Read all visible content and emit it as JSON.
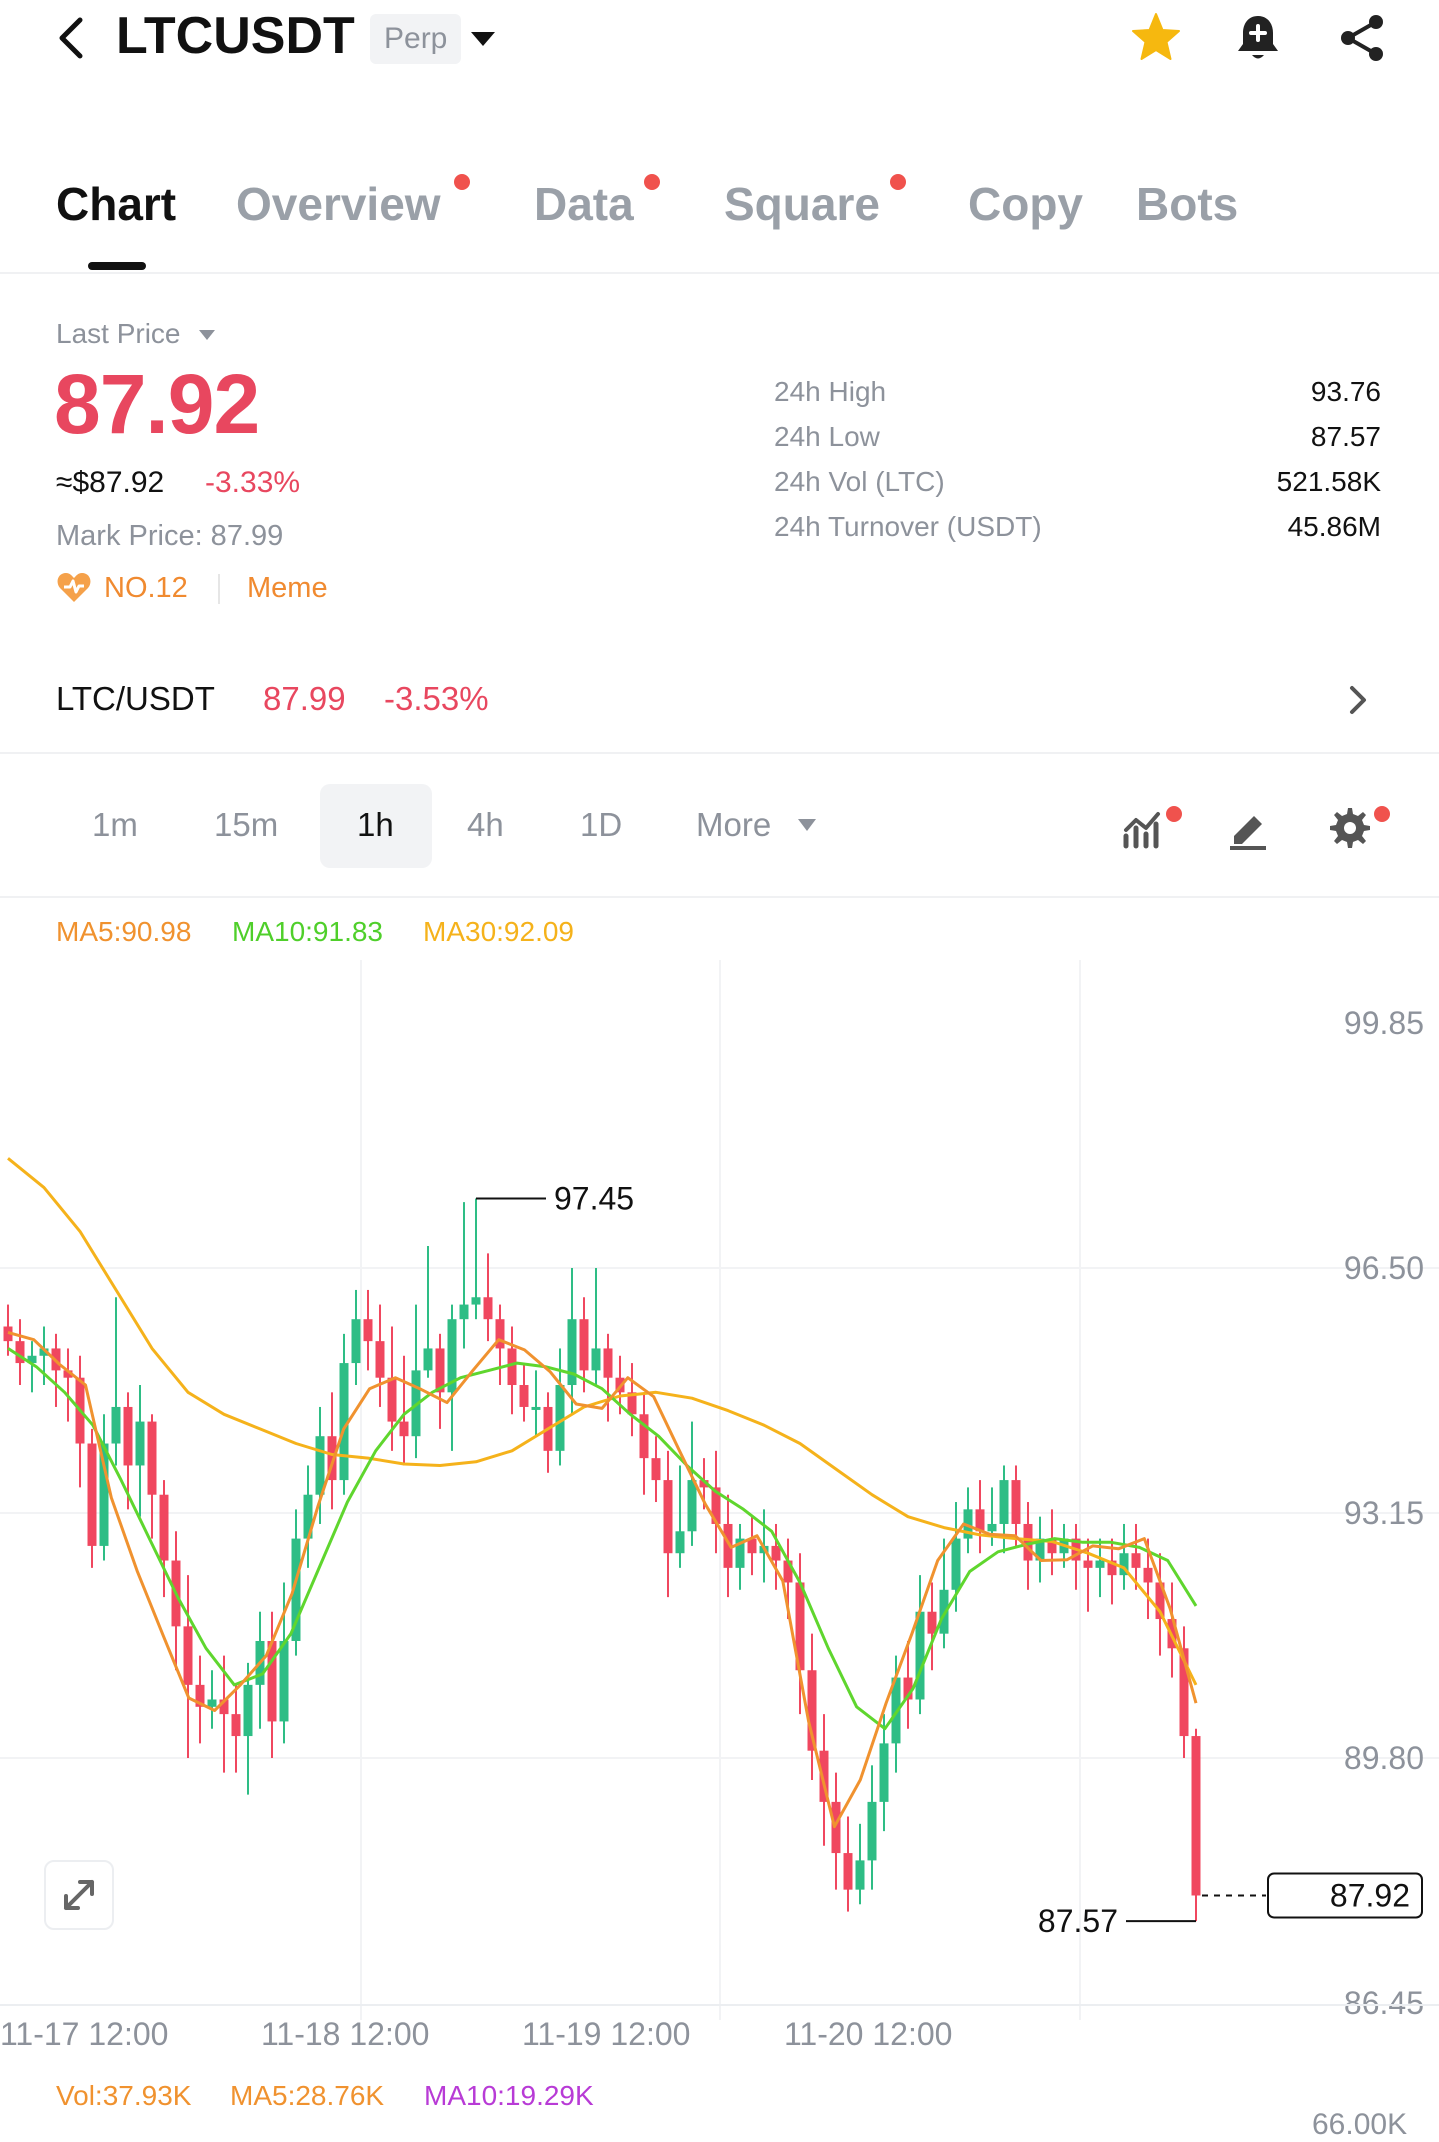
{
  "header": {
    "symbol": "LTCUSDT",
    "contract_type": "Perp",
    "icons": [
      "back-icon",
      "chevron-down-icon",
      "star-icon",
      "bell-plus-icon",
      "share-icon"
    ]
  },
  "tabs": [
    {
      "label": "Chart",
      "active": true,
      "dot": false
    },
    {
      "label": "Overview",
      "active": false,
      "dot": true
    },
    {
      "label": "Data",
      "active": false,
      "dot": true
    },
    {
      "label": "Square",
      "active": false,
      "dot": true
    },
    {
      "label": "Copy",
      "active": false,
      "dot": false
    },
    {
      "label": "Bots",
      "active": false,
      "dot": false
    }
  ],
  "price": {
    "last_price_label": "Last Price",
    "last_price": "87.92",
    "approx_usd": "≈$87.92",
    "change_pct": "-3.33%",
    "mark_price": "Mark Price:  87.99",
    "rank": "NO.12",
    "tag": "Meme"
  },
  "stats": [
    {
      "label": "24h High",
      "value": "93.76"
    },
    {
      "label": "24h Low",
      "value": "87.57"
    },
    {
      "label": "24h Vol (LTC)",
      "value": "521.58K"
    },
    {
      "label": "24h Turnover (USDT)",
      "value": "45.86M"
    }
  ],
  "spot_pair": {
    "pair": "LTC/USDT",
    "price": "87.99",
    "change": "-3.53%"
  },
  "timeframes": [
    {
      "label": "1m",
      "active": false
    },
    {
      "label": "15m",
      "active": false
    },
    {
      "label": "1h",
      "active": true
    },
    {
      "label": "4h",
      "active": false
    },
    {
      "label": "1D",
      "active": false
    },
    {
      "label": "More",
      "active": false
    }
  ],
  "ma_legend": {
    "ma5": "MA5:90.98",
    "ma10": "MA10:91.83",
    "ma30": "MA30:92.09"
  },
  "colors": {
    "up": "#2ebd85",
    "down": "#f0475f",
    "ma5": "#f0922f",
    "ma10": "#5fd62e",
    "ma30": "#f5b21b",
    "accent": "#e8475f"
  },
  "chart_data": {
    "type": "candlestick",
    "interval": "1h",
    "y_ticks": [
      "99.85",
      "96.50",
      "93.15",
      "89.80",
      "86.45"
    ],
    "ylim": [
      86.45,
      99.85
    ],
    "x_ticks": [
      "11-17 12:00",
      "11-18 12:00",
      "11-19 12:00",
      "11-20 12:00"
    ],
    "high_marker": "97.45",
    "low_marker": "87.57",
    "current_price": "87.92",
    "candles": [
      [
        95.7,
        95.5,
        96.0,
        95.3
      ],
      [
        95.5,
        95.2,
        95.8,
        94.9
      ],
      [
        95.2,
        95.3,
        95.5,
        94.8
      ],
      [
        95.3,
        95.4,
        95.7,
        94.9
      ],
      [
        95.4,
        95.1,
        95.6,
        94.6
      ],
      [
        95.1,
        95.0,
        95.4,
        94.4
      ],
      [
        95.0,
        94.1,
        95.3,
        93.5
      ],
      [
        94.1,
        92.7,
        94.3,
        92.4
      ],
      [
        92.7,
        94.1,
        94.5,
        92.5
      ],
      [
        94.1,
        94.6,
        96.1,
        93.8
      ],
      [
        94.6,
        93.8,
        94.8,
        93.2
      ],
      [
        93.8,
        94.4,
        94.9,
        93.1
      ],
      [
        94.4,
        93.4,
        94.5,
        92.8
      ],
      [
        93.4,
        92.5,
        93.6,
        92.0
      ],
      [
        92.5,
        91.6,
        92.9,
        91.0
      ],
      [
        91.6,
        90.8,
        92.3,
        89.8
      ],
      [
        90.8,
        90.5,
        91.2,
        90.0
      ],
      [
        90.5,
        90.6,
        91.0,
        90.2
      ],
      [
        90.6,
        90.4,
        91.2,
        89.6
      ],
      [
        90.4,
        90.1,
        90.8,
        89.6
      ],
      [
        90.1,
        90.8,
        91.1,
        89.3
      ],
      [
        90.8,
        91.4,
        91.8,
        90.2
      ],
      [
        91.4,
        90.3,
        91.8,
        89.8
      ],
      [
        90.3,
        91.4,
        92.2,
        90.0
      ],
      [
        91.4,
        92.8,
        93.2,
        91.2
      ],
      [
        92.8,
        93.4,
        93.8,
        92.4
      ],
      [
        93.4,
        94.2,
        94.6,
        93.0
      ],
      [
        94.2,
        93.6,
        94.8,
        93.2
      ],
      [
        93.6,
        95.2,
        95.6,
        93.4
      ],
      [
        95.2,
        95.8,
        96.2,
        94.9
      ],
      [
        95.8,
        95.5,
        96.2,
        95.1
      ],
      [
        95.5,
        95.0,
        96.0,
        94.6
      ],
      [
        95.0,
        94.4,
        95.7,
        94.0
      ],
      [
        94.4,
        94.2,
        95.3,
        93.8
      ],
      [
        94.2,
        95.1,
        96.0,
        93.9
      ],
      [
        95.1,
        95.4,
        96.8,
        95.0
      ],
      [
        95.4,
        94.8,
        95.6,
        94.3
      ],
      [
        94.8,
        95.8,
        96.0,
        94.0
      ],
      [
        95.8,
        96.0,
        97.4,
        95.4
      ],
      [
        96.0,
        96.1,
        97.45,
        95.8
      ],
      [
        96.1,
        95.8,
        96.7,
        95.5
      ],
      [
        95.8,
        95.4,
        96.0,
        94.9
      ],
      [
        95.4,
        94.9,
        95.7,
        94.5
      ],
      [
        94.9,
        94.6,
        95.2,
        94.4
      ],
      [
        94.6,
        94.6,
        95.1,
        94.2
      ],
      [
        94.6,
        94.0,
        94.8,
        93.7
      ],
      [
        94.0,
        94.9,
        95.4,
        93.8
      ],
      [
        94.9,
        95.8,
        96.5,
        94.5
      ],
      [
        95.8,
        95.1,
        96.1,
        94.8
      ],
      [
        95.1,
        95.4,
        96.5,
        94.9
      ],
      [
        95.4,
        95.0,
        95.6,
        94.4
      ],
      [
        95.0,
        94.8,
        95.3,
        94.5
      ],
      [
        94.8,
        94.5,
        95.2,
        94.2
      ],
      [
        94.5,
        93.9,
        94.8,
        93.4
      ],
      [
        93.9,
        93.6,
        94.2,
        93.3
      ],
      [
        93.6,
        92.6,
        94.0,
        92.0
      ],
      [
        92.6,
        92.9,
        93.8,
        92.4
      ],
      [
        92.9,
        93.6,
        94.4,
        92.7
      ],
      [
        93.6,
        93.5,
        93.9,
        93.2
      ],
      [
        93.5,
        93.0,
        94.0,
        92.6
      ],
      [
        93.0,
        92.4,
        93.4,
        92.0
      ],
      [
        92.4,
        92.8,
        93.0,
        92.1
      ],
      [
        92.8,
        92.6,
        93.1,
        92.3
      ],
      [
        92.6,
        92.7,
        93.2,
        92.2
      ],
      [
        92.7,
        92.5,
        93.0,
        92.1
      ],
      [
        92.5,
        92.2,
        92.8,
        91.7
      ],
      [
        92.2,
        91.0,
        92.6,
        90.4
      ],
      [
        91.0,
        89.9,
        91.5,
        89.5
      ],
      [
        89.9,
        89.2,
        90.4,
        88.6
      ],
      [
        89.2,
        88.5,
        89.6,
        88.0
      ],
      [
        88.5,
        88.0,
        89.0,
        87.7
      ],
      [
        88.0,
        88.4,
        88.9,
        87.8
      ],
      [
        88.4,
        89.2,
        89.7,
        88.0
      ],
      [
        89.2,
        90.0,
        90.4,
        88.8
      ],
      [
        90.0,
        90.9,
        91.2,
        89.6
      ],
      [
        90.9,
        90.6,
        91.4,
        90.2
      ],
      [
        90.6,
        91.8,
        92.3,
        90.4
      ],
      [
        91.8,
        91.5,
        92.2,
        91.0
      ],
      [
        91.5,
        92.1,
        92.8,
        91.3
      ],
      [
        92.1,
        92.8,
        93.3,
        91.8
      ],
      [
        92.8,
        93.2,
        93.5,
        92.6
      ],
      [
        93.2,
        92.9,
        93.6,
        92.6
      ],
      [
        92.9,
        93.0,
        93.5,
        92.7
      ],
      [
        93.0,
        93.6,
        93.8,
        92.6
      ],
      [
        93.6,
        93.0,
        93.8,
        92.7
      ],
      [
        93.0,
        92.5,
        93.3,
        92.1
      ],
      [
        92.5,
        92.8,
        93.1,
        92.2
      ],
      [
        92.8,
        92.6,
        93.2,
        92.3
      ],
      [
        92.6,
        92.8,
        93.0,
        92.4
      ],
      [
        92.8,
        92.5,
        93.0,
        92.1
      ],
      [
        92.5,
        92.4,
        92.8,
        91.8
      ],
      [
        92.4,
        92.5,
        92.8,
        92.0
      ],
      [
        92.5,
        92.3,
        92.8,
        91.9
      ],
      [
        92.3,
        92.6,
        93.0,
        92.1
      ],
      [
        92.6,
        92.4,
        93.0,
        92.1
      ],
      [
        92.4,
        92.2,
        92.8,
        91.7
      ],
      [
        92.2,
        91.7,
        92.6,
        91.2
      ],
      [
        91.7,
        91.3,
        92.2,
        90.9
      ],
      [
        91.3,
        90.1,
        91.6,
        89.8
      ],
      [
        90.1,
        87.92,
        90.2,
        87.57
      ]
    ],
    "ma5": [
      95.62,
      95.52,
      95.18,
      94.9,
      93.36,
      92.36,
      91.48,
      90.62,
      90.45,
      90.8,
      91.2,
      92.05,
      93.24,
      94.3,
      94.85,
      95.0,
      94.84,
      94.66,
      95.1,
      95.52,
      95.38,
      95.08,
      94.64,
      94.58,
      95.0,
      94.74,
      94.0,
      93.27,
      92.68,
      92.84,
      92.22,
      90.3,
      88.86,
      89.5,
      90.55,
      91.5,
      92.5,
      93.0,
      92.86,
      92.84,
      92.5,
      92.51,
      92.7,
      92.66,
      92.8,
      91.84,
      90.55
    ],
    "ma10": [
      95.4,
      95.15,
      94.8,
      94.35,
      93.6,
      92.8,
      92.0,
      91.3,
      90.8,
      90.95,
      91.5,
      92.4,
      93.3,
      94.0,
      94.5,
      94.8,
      95.0,
      95.1,
      95.2,
      95.15,
      95.05,
      94.85,
      94.5,
      94.2,
      93.8,
      93.45,
      93.2,
      92.9,
      92.2,
      91.3,
      90.5,
      90.2,
      90.75,
      91.7,
      92.35,
      92.62,
      92.72,
      92.8,
      92.75,
      92.75,
      92.68,
      92.5,
      91.88
    ],
    "ma30": [
      98.0,
      97.6,
      97.0,
      96.2,
      95.4,
      94.8,
      94.5,
      94.3,
      94.1,
      93.95,
      93.9,
      93.82,
      93.8,
      93.85,
      94.0,
      94.3,
      94.6,
      94.75,
      94.8,
      94.72,
      94.55,
      94.35,
      94.1,
      93.75,
      93.4,
      93.1,
      92.95,
      92.85,
      92.8,
      92.76,
      92.6,
      92.4,
      91.8,
      90.8
    ],
    "volume_legend": {
      "vol": "Vol:37.93K",
      "ma5": "MA5:28.76K",
      "ma10": "MA10:19.29K",
      "axis_top": "66.00K"
    }
  }
}
